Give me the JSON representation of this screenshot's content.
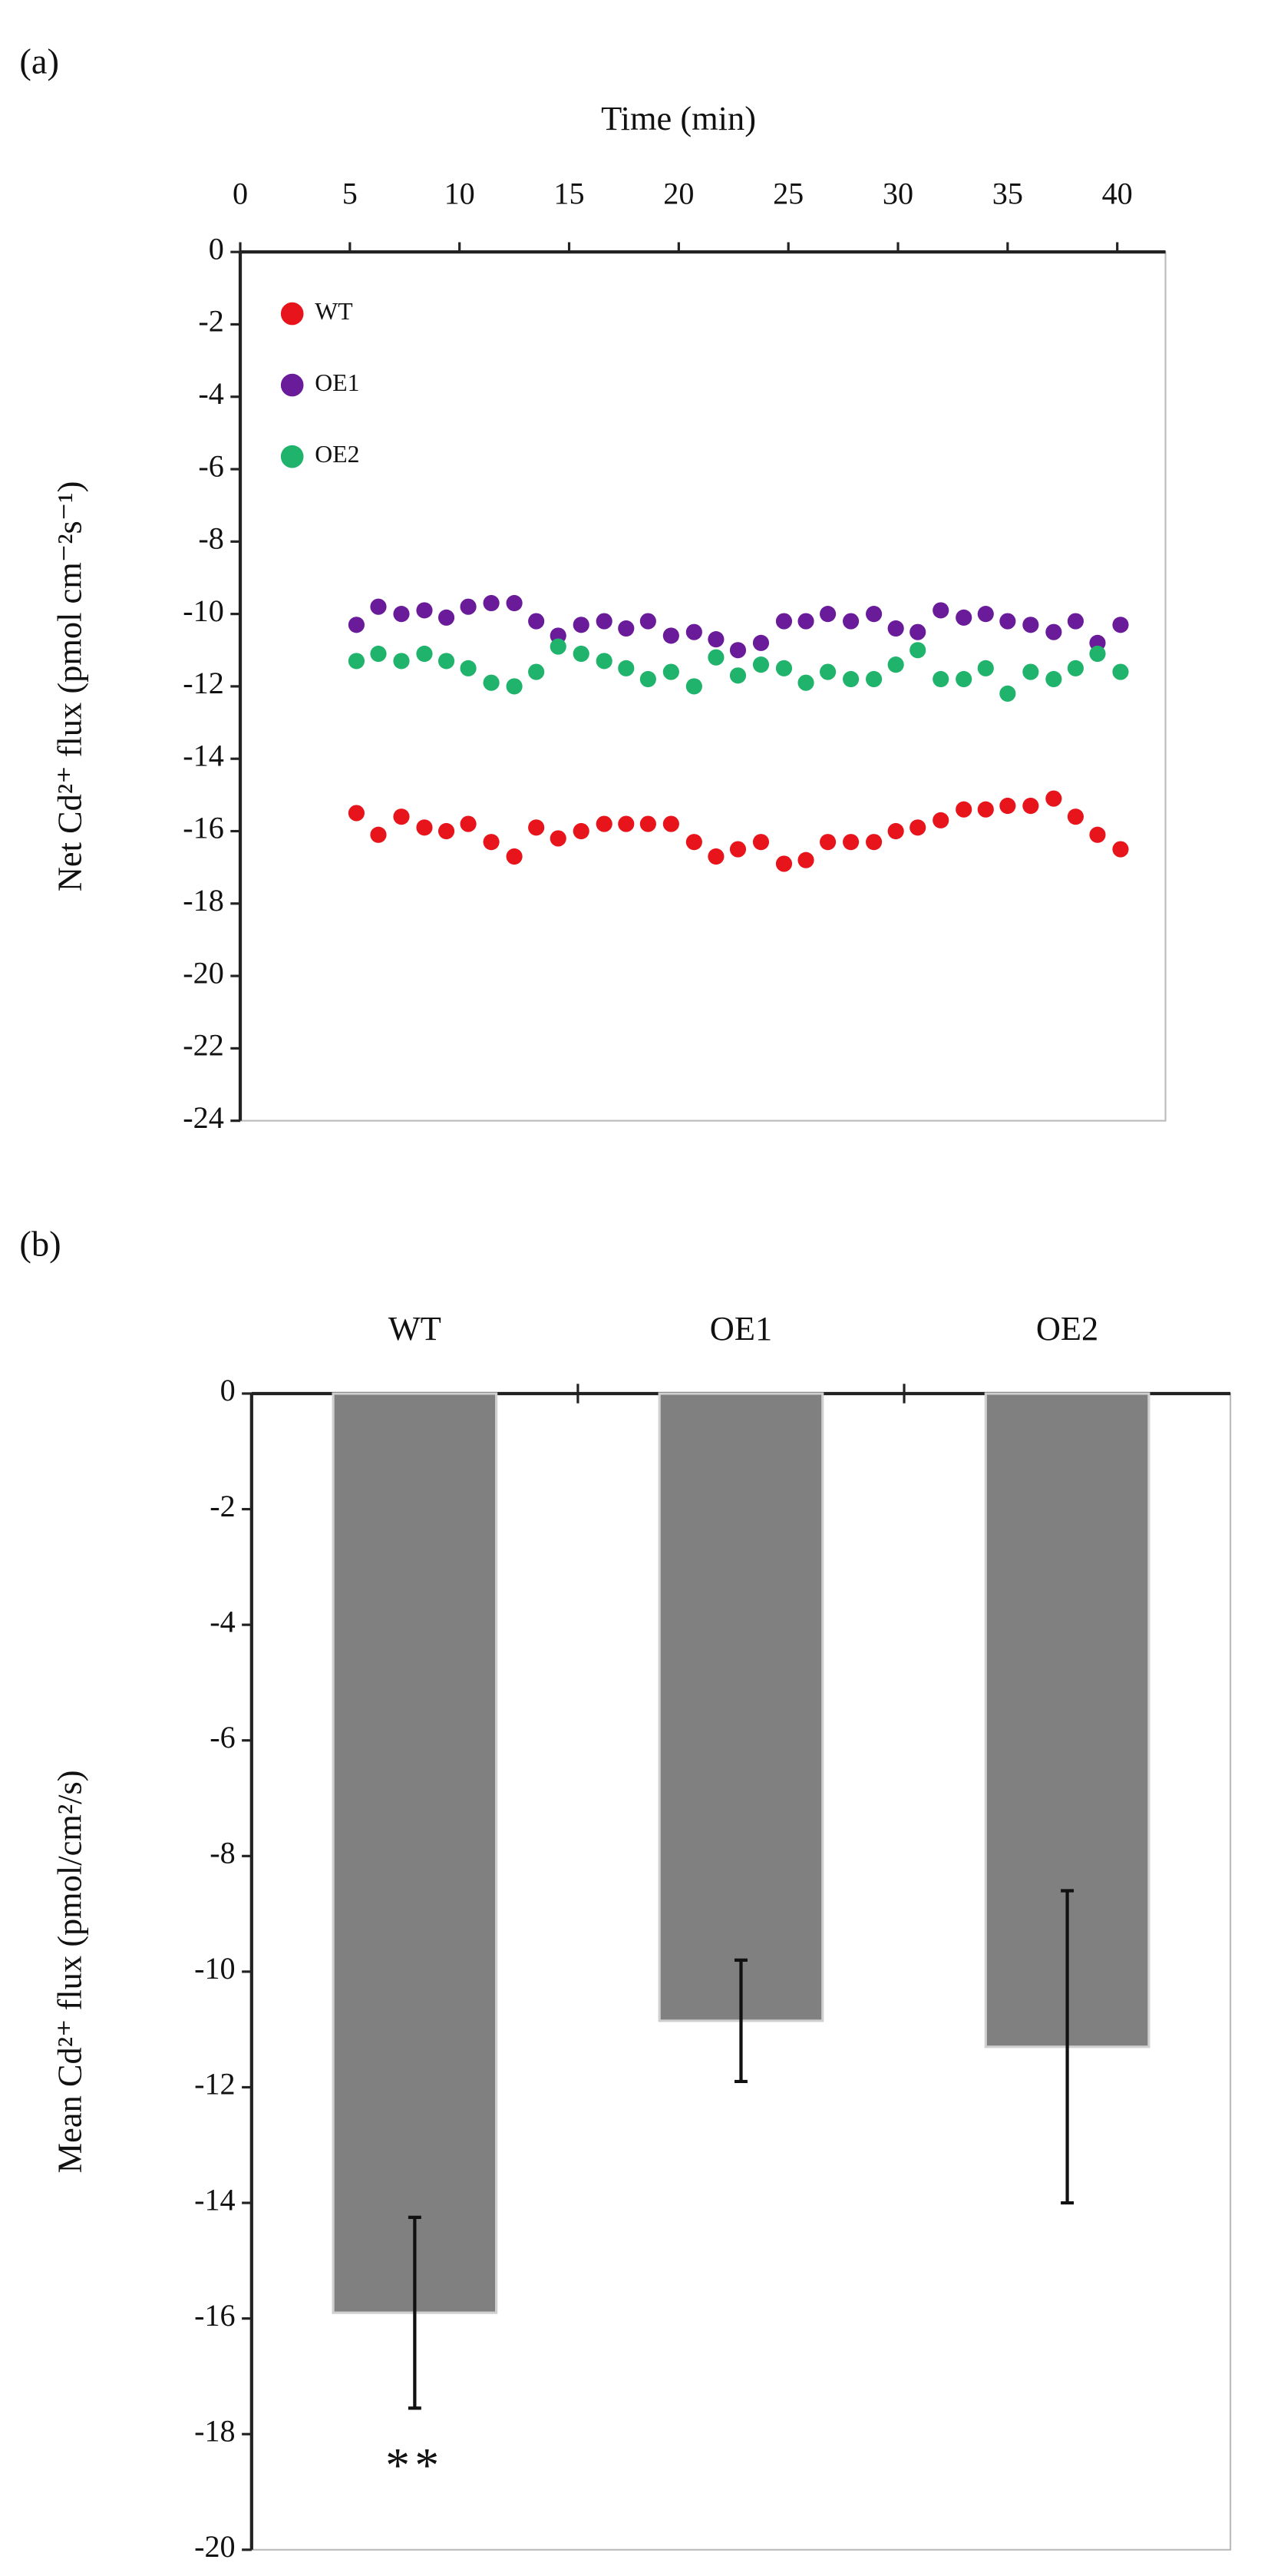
{
  "chart_data": [
    {
      "type": "scatter",
      "panel": "(a)",
      "x_label": "Time (min)",
      "y_label": "Net Cd²⁺ flux (pmol cm⁻²s⁻¹)",
      "x_axis_side": "top",
      "legend": "upper left",
      "x": [
        5.3,
        6.3,
        7.35,
        8.4,
        9.4,
        10.4,
        11.45,
        12.5,
        13.5,
        14.5,
        15.55,
        16.6,
        17.6,
        18.6,
        19.65,
        20.7,
        21.7,
        22.7,
        23.75,
        24.8,
        25.8,
        26.8,
        27.85,
        28.9,
        29.9,
        30.9,
        31.95,
        33.0,
        34.0,
        35.0,
        36.05,
        37.1,
        38.1,
        39.1,
        40.15
      ],
      "series": [
        {
          "name": "WT",
          "color": "#e8141b",
          "values": [
            -15.5,
            -16.1,
            -15.6,
            -15.9,
            -16.0,
            -15.8,
            -16.3,
            -16.7,
            -15.9,
            -16.2,
            -16.0,
            -15.8,
            -15.8,
            -15.8,
            -15.8,
            -16.3,
            -16.7,
            -16.5,
            -16.3,
            -16.9,
            -16.8,
            -16.3,
            -16.3,
            -16.3,
            -16.0,
            -15.9,
            -15.7,
            -15.4,
            -15.4,
            -15.3,
            -15.3,
            -15.1,
            -15.6,
            -16.1,
            -16.5
          ]
        },
        {
          "name": "OE1",
          "color": "#6a1b9a",
          "values": [
            -10.3,
            -9.8,
            -10.0,
            -9.9,
            -10.1,
            -9.8,
            -9.7,
            -9.7,
            -10.2,
            -10.6,
            -10.3,
            -10.2,
            -10.4,
            -10.2,
            -10.6,
            -10.5,
            -10.7,
            -11.0,
            -10.8,
            -10.2,
            -10.2,
            -10.0,
            -10.2,
            -10.0,
            -10.4,
            -10.5,
            -9.9,
            -10.1,
            -10.0,
            -10.2,
            -10.3,
            -10.5,
            -10.2,
            -10.8,
            -10.3
          ]
        },
        {
          "name": "OE2",
          "color": "#1fb36b",
          "values": [
            -11.3,
            -11.1,
            -11.3,
            -11.1,
            -11.3,
            -11.5,
            -11.9,
            -12.0,
            -11.6,
            -10.9,
            -11.1,
            -11.3,
            -11.5,
            -11.8,
            -11.6,
            -12.0,
            -11.2,
            -11.7,
            -11.4,
            -11.5,
            -11.9,
            -11.6,
            -11.8,
            -11.8,
            -11.4,
            -11.0,
            -11.8,
            -11.8,
            -11.5,
            -12.2,
            -11.6,
            -11.8,
            -11.5,
            -11.1,
            -11.6
          ]
        }
      ],
      "xlim": [
        0,
        42.2
      ],
      "xticks": [
        0,
        5,
        10,
        15,
        20,
        25,
        30,
        35,
        40
      ],
      "ylim": [
        -24,
        0
      ],
      "yticks": [
        0,
        -2,
        -4,
        -6,
        -8,
        -10,
        -12,
        -14,
        -16,
        -18,
        -20,
        -22,
        -24
      ]
    },
    {
      "type": "bar",
      "panel": "(b)",
      "y_label": "Mean Cd²⁺ flux (pmol/cm²/s)",
      "x_axis_side": "top",
      "categories": [
        "WT",
        "OE1",
        "OE2"
      ],
      "values": [
        -15.9,
        -10.85,
        -11.3
      ],
      "errors": [
        1.65,
        1.05,
        2.7
      ],
      "color": "#808080",
      "annotations": [
        {
          "text": "**",
          "category": 0,
          "y": -18.4
        }
      ],
      "ylim": [
        -20,
        0
      ],
      "yticks": [
        0,
        -2,
        -4,
        -6,
        -8,
        -10,
        -12,
        -14,
        -16,
        -18,
        -20
      ]
    }
  ]
}
